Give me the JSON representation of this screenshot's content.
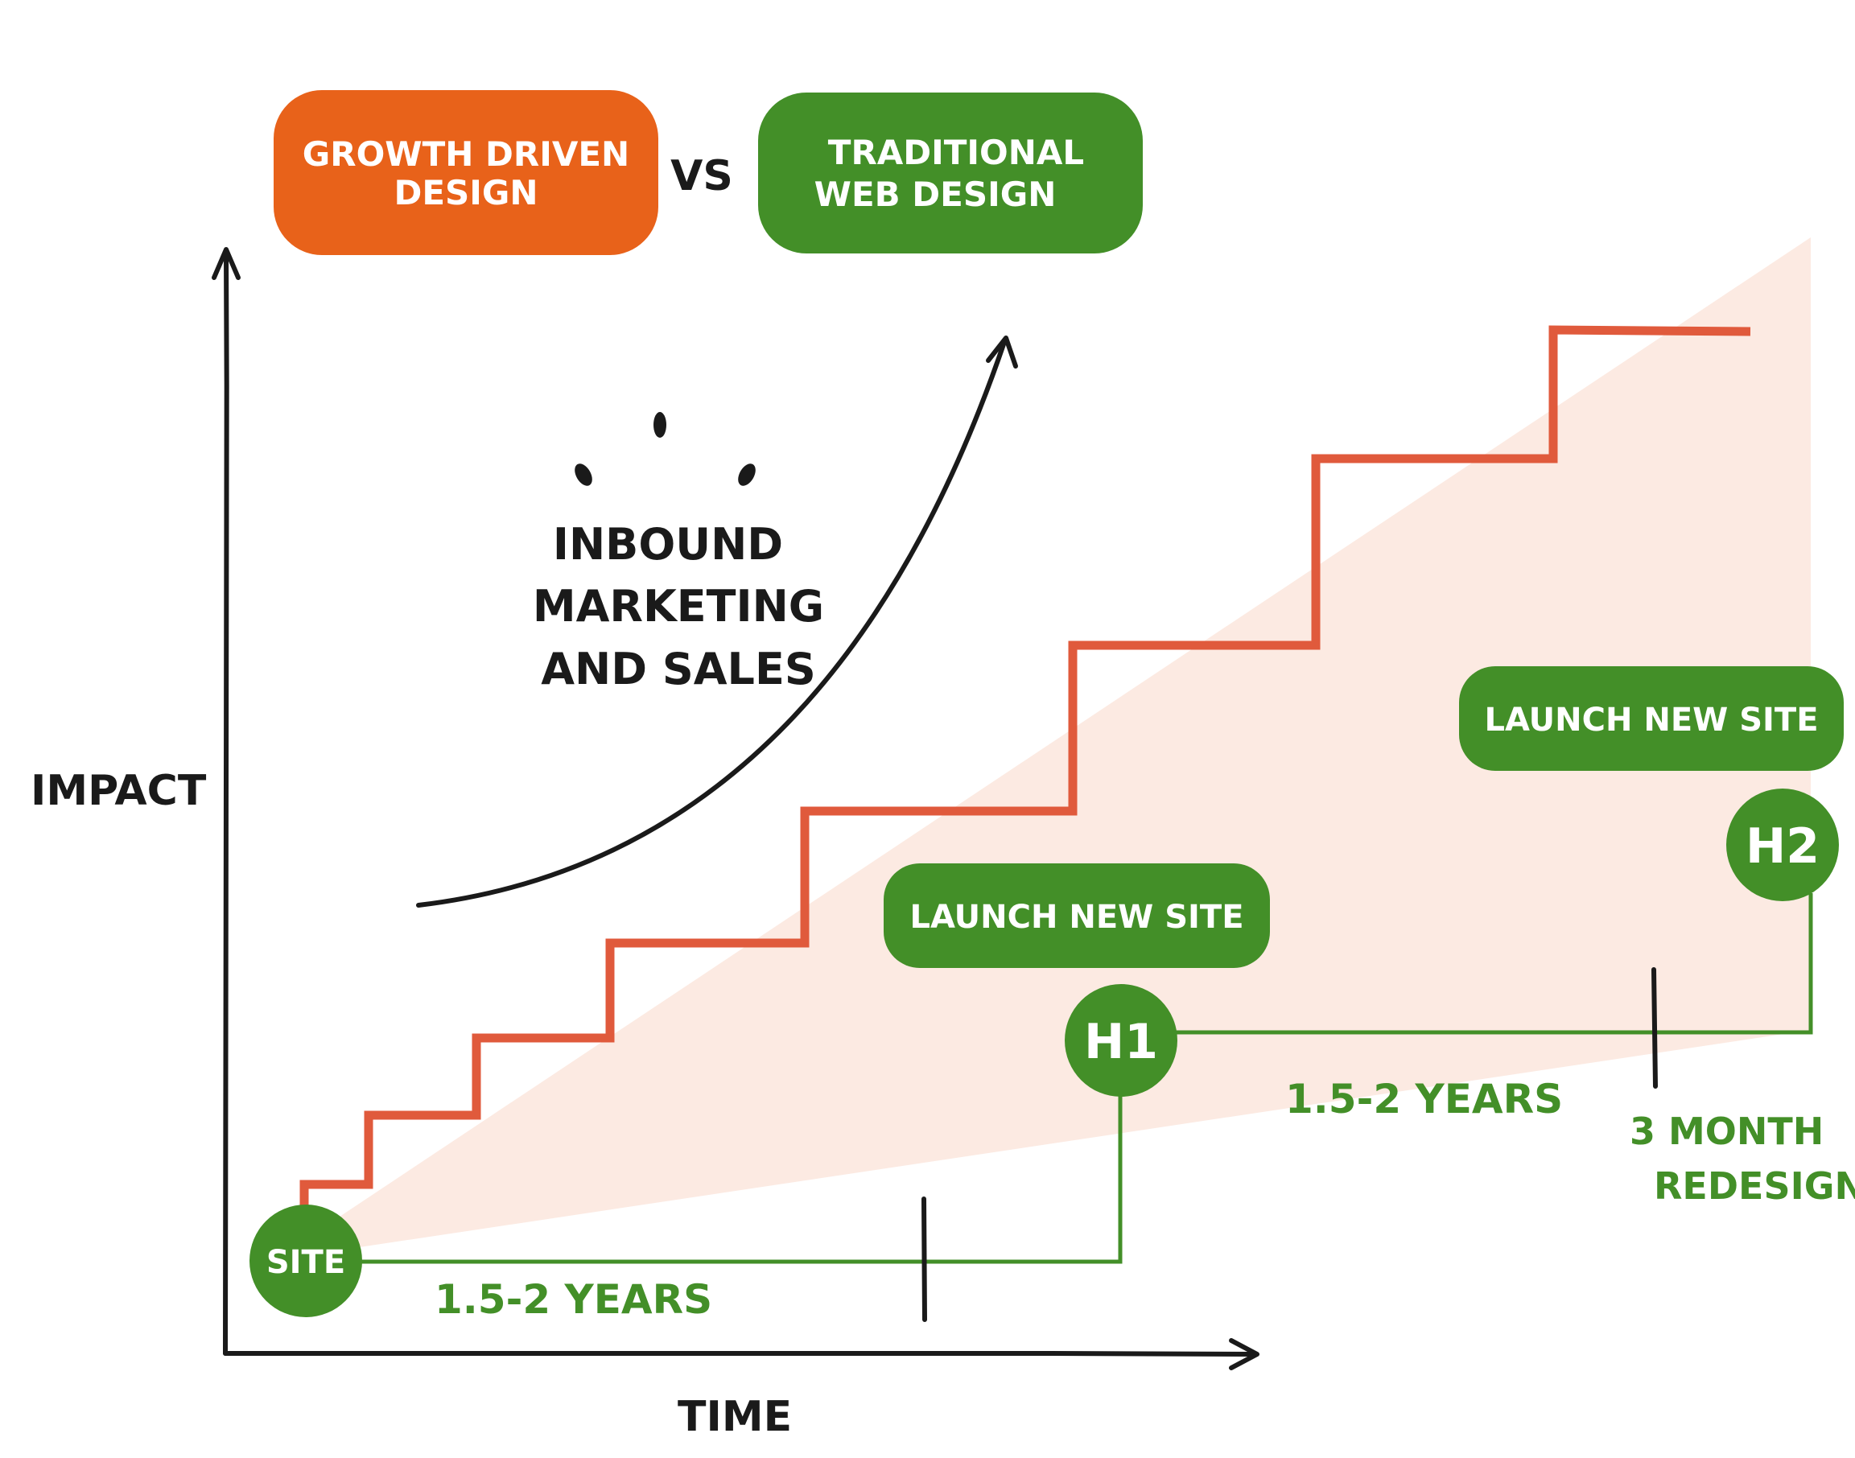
{
  "legend": {
    "gdd_label_line1": "GROWTH DRIVEN",
    "gdd_label_line2": "DESIGN",
    "vs_label": "VS",
    "traditional_label_line1": "TRADITIONAL",
    "traditional_label_line2": "WEB DESIGN"
  },
  "axes": {
    "y_label": "IMPACT",
    "x_label": "TIME"
  },
  "annotations": {
    "inbound_line1": "INBOUND",
    "inbound_line2": "MARKETING",
    "inbound_line3": "AND SALES",
    "launch_1": "LAUNCH NEW SITE",
    "launch_2": "LAUNCH NEW SITE",
    "node_site": "SITE",
    "node_h1": "H1",
    "node_h2": "H2",
    "duration_1": "1.5-2 YEARS",
    "duration_2": "1.5-2 YEARS",
    "redesign_line1": "3 MONTH",
    "redesign_line2": "REDESIGN"
  },
  "colors": {
    "gdd_orange": "#E8621A",
    "staircase_red": "#E05A3C",
    "traditional_green": "#438F28",
    "shade": "#FCEAE2",
    "ink": "#1A1A1A"
  }
}
